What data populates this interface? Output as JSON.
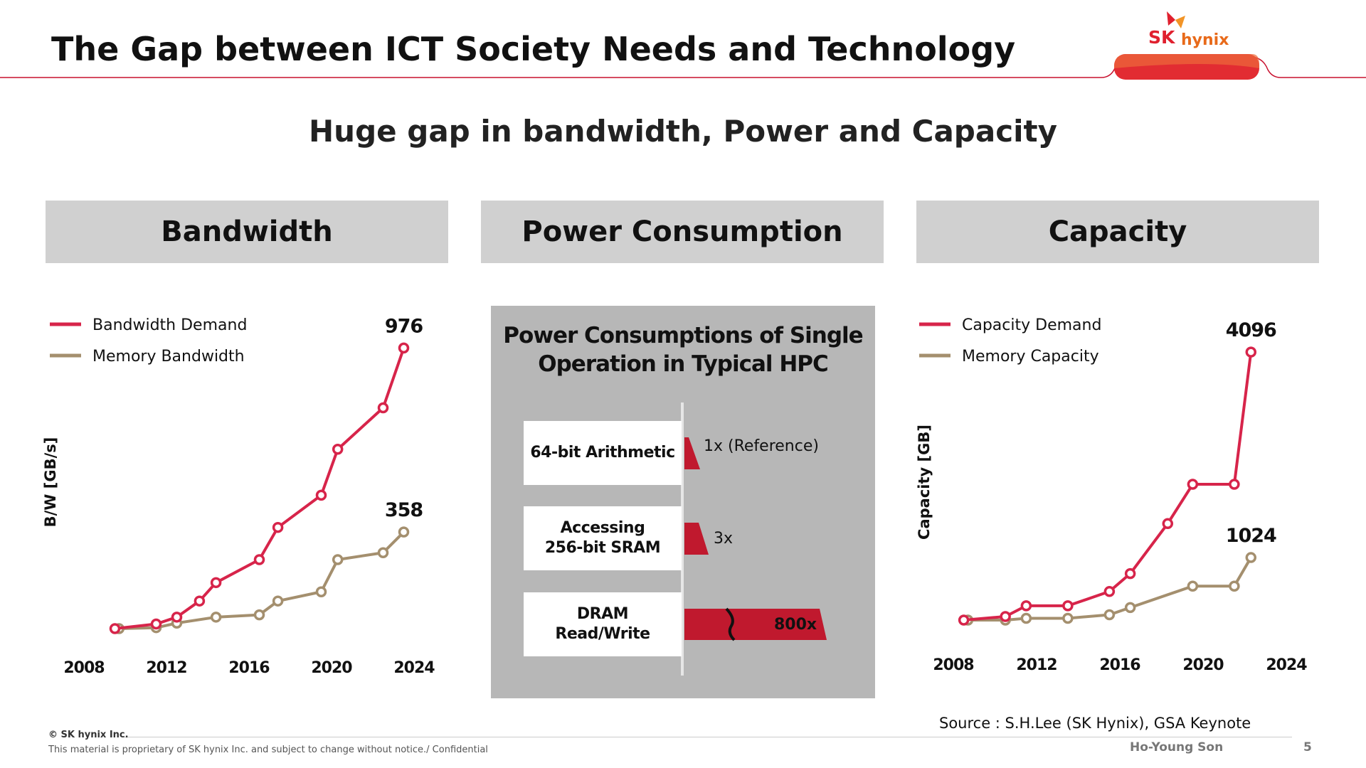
{
  "header": {
    "title": "The Gap between ICT Society Needs and Technology",
    "logo_sk": "SK",
    "logo_hynix": "hynix"
  },
  "subtitle": "Huge gap in bandwidth, Power and Capacity",
  "sections": {
    "bandwidth": "Bandwidth",
    "power": "Power Consumption",
    "capacity": "Capacity"
  },
  "colors": {
    "demand": "#d7244a",
    "memory": "#a48f6e",
    "accent": "#e0202e"
  },
  "power_panel": {
    "title_line1": "Power Consumptions of Single",
    "title_line2": "Operation in Typical HPC",
    "ops": [
      {
        "label_line1": "64-bit Arithmetic",
        "label_line2": "",
        "ratio": "1x (Reference)",
        "value": 1
      },
      {
        "label_line1": "Accessing",
        "label_line2": "256-bit SRAM",
        "ratio": "3x",
        "value": 3
      },
      {
        "label_line1": "DRAM",
        "label_line2": "Read/Write",
        "ratio": "800x",
        "value": 800
      }
    ]
  },
  "chart_data": [
    {
      "type": "line",
      "ylabel": "B/W [GB/s]",
      "xlabel": "",
      "xticks": [
        "2008",
        "2012",
        "2016",
        "2020",
        "2024"
      ],
      "xlim": [
        2008,
        2024
      ],
      "series": [
        {
          "name": "Bandwidth Demand",
          "color": "#d7244a",
          "x": [
            2009.5,
            2011.5,
            2012.5,
            2013.6,
            2014.4,
            2016.5,
            2017.4,
            2019.5,
            2020.3,
            2022.5,
            2023.5
          ],
          "y": [
            0,
            10,
            25,
            60,
            100,
            150,
            220,
            290,
            390,
            480,
            610
          ],
          "end_label": "976"
        },
        {
          "name": "Memory Bandwidth",
          "color": "#a48f6e",
          "x": [
            2009.7,
            2011.5,
            2012.5,
            2014.4,
            2016.5,
            2017.4,
            2019.5,
            2020.3,
            2022.5,
            2023.5
          ],
          "y": [
            0,
            2,
            12,
            25,
            30,
            60,
            80,
            150,
            165,
            210
          ],
          "end_label": "358"
        }
      ]
    },
    {
      "type": "line",
      "ylabel": "Capacity [GB]",
      "xlabel": "",
      "xticks": [
        "2008",
        "2012",
        "2016",
        "2020",
        "2024"
      ],
      "xlim": [
        2008,
        2024
      ],
      "series": [
        {
          "name": "Capacity Demand",
          "color": "#d7244a",
          "x": [
            2008.5,
            2010.5,
            2011.5,
            2013.5,
            2015.5,
            2016.5,
            2018.3,
            2019.5,
            2021.5,
            2022.3
          ],
          "y": [
            0,
            10,
            40,
            40,
            80,
            130,
            270,
            380,
            380,
            750
          ],
          "end_label": "4096"
        },
        {
          "name": "Memory Capacity",
          "color": "#a48f6e",
          "x": [
            2008.7,
            2010.5,
            2011.5,
            2013.5,
            2015.5,
            2016.5,
            2019.5,
            2021.5,
            2022.3
          ],
          "y": [
            0,
            0,
            5,
            5,
            15,
            35,
            95,
            95,
            175
          ],
          "end_label": "1024"
        }
      ]
    }
  ],
  "footer": {
    "source": "Source : S.H.Lee (SK Hynix), GSA Keynote",
    "copyright": "© SK hynix Inc.",
    "note": "This material is proprietary of SK hynix Inc. and subject to change without notice./ Confidential",
    "author": "Ho-Young Son",
    "page": "5"
  }
}
